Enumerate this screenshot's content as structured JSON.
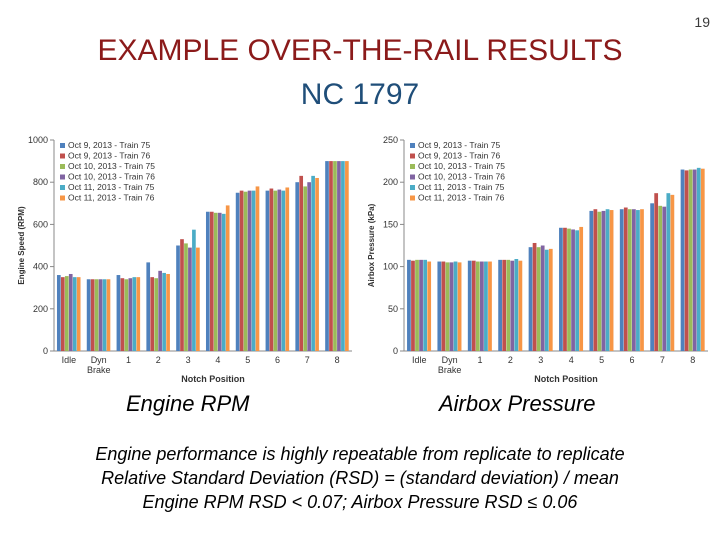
{
  "slide_number": "19",
  "title_line1": "EXAMPLE OVER-THE-RAIL RESULTS",
  "title_line2": "NC 1797",
  "captions": {
    "rpm": "Engine RPM",
    "airbox": "Airbox Pressure"
  },
  "footer_lines": [
    "Engine performance is highly repeatable from replicate to replicate",
    "Relative Standard Deviation (RSD) = (standard deviation) / mean",
    "Engine RPM RSD < 0.07; Airbox Pressure RSD ≤ 0.06"
  ],
  "colors": [
    "#4f81bd",
    "#c0504d",
    "#9bbb59",
    "#8064a2",
    "#4bacc6",
    "#f79646"
  ],
  "chart_data": [
    {
      "type": "bar",
      "categories": [
        "Idle",
        "Dyn\nBrake",
        "1",
        "2",
        "3",
        "4",
        "5",
        "6",
        "7",
        "8"
      ],
      "xlabel": "Notch Position",
      "ylabel": "Engine Speed (RPM)",
      "ylim": [
        0,
        1000
      ],
      "yticks": [
        0,
        200,
        400,
        600,
        800,
        1000
      ],
      "legend": "top-left",
      "series": [
        {
          "name": "Oct 9, 2013 - Train 75",
          "values": [
            360,
            340,
            360,
            420,
            500,
            660,
            750,
            760,
            800,
            900
          ]
        },
        {
          "name": "Oct 9, 2013 - Train 76",
          "values": [
            350,
            340,
            345,
            350,
            530,
            660,
            760,
            770,
            830,
            900
          ]
        },
        {
          "name": "Oct 10, 2013 - Train 75",
          "values": [
            355,
            340,
            340,
            345,
            510,
            655,
            755,
            760,
            780,
            900
          ]
        },
        {
          "name": "Oct 10, 2013 - Train 76",
          "values": [
            365,
            340,
            345,
            380,
            490,
            655,
            760,
            765,
            800,
            900
          ]
        },
        {
          "name": "Oct 11, 2013 - Train 75",
          "values": [
            350,
            340,
            350,
            370,
            575,
            650,
            760,
            760,
            830,
            900
          ]
        },
        {
          "name": "Oct 11, 2013 - Train 76",
          "values": [
            350,
            340,
            350,
            365,
            490,
            690,
            780,
            775,
            820,
            900
          ]
        }
      ]
    },
    {
      "type": "bar",
      "categories": [
        "Idle",
        "Dyn\nBrake",
        "1",
        "2",
        "3",
        "4",
        "5",
        "6",
        "7",
        "8"
      ],
      "xlabel": "Notch Position",
      "ylabel": "Airbox Pressure (kPa)",
      "ylim": [
        0,
        250
      ],
      "yticks": [
        0,
        50,
        100,
        150,
        200,
        250
      ],
      "legend": "top-left",
      "series": [
        {
          "name": "Oct 9, 2013 - Train 75",
          "values": [
            108,
            106,
            107,
            108,
            123,
            146,
            166,
            168,
            175,
            215
          ]
        },
        {
          "name": "Oct 9, 2013 - Train 76",
          "values": [
            107,
            106,
            107,
            108,
            128,
            146,
            168,
            170,
            187,
            214
          ]
        },
        {
          "name": "Oct 10, 2013 - Train 75",
          "values": [
            108,
            105,
            106,
            108,
            123,
            145,
            165,
            168,
            172,
            215
          ]
        },
        {
          "name": "Oct 10, 2013 - Train 76",
          "values": [
            108,
            105,
            106,
            107,
            125,
            144,
            166,
            168,
            171,
            215
          ]
        },
        {
          "name": "Oct 11, 2013 - Train 75",
          "values": [
            108,
            106,
            106,
            109,
            120,
            143,
            168,
            167,
            187,
            217
          ]
        },
        {
          "name": "Oct 11, 2013 - Train 76",
          "values": [
            106,
            105,
            106,
            107,
            121,
            147,
            167,
            168,
            185,
            216
          ]
        }
      ]
    }
  ]
}
